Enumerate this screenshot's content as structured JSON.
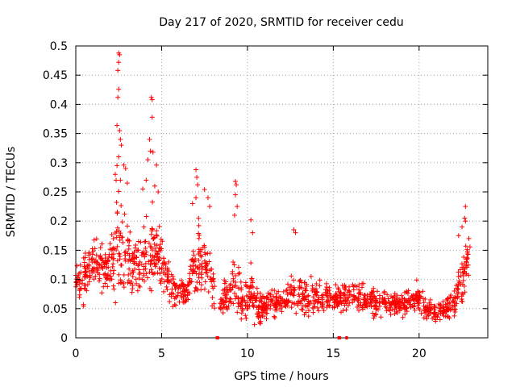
{
  "chart_data": {
    "type": "scatter",
    "title": "Day 217 of 2020, SRMTID for receiver cedu",
    "xlabel": "GPS time / hours",
    "ylabel": "SRMTID / TECUs",
    "xlim": [
      0,
      24
    ],
    "ylim": [
      0,
      0.5
    ],
    "x_ticks": [
      0,
      5,
      10,
      15,
      20
    ],
    "x_tick_labels": [
      "0",
      "5",
      "10",
      "15",
      "20"
    ],
    "y_ticks": [
      0,
      0.05,
      0.1,
      0.15,
      0.2,
      0.25,
      0.3,
      0.35,
      0.4,
      0.45,
      0.5
    ],
    "y_tick_labels": [
      "0",
      "0.05",
      "0.1",
      "0.15",
      "0.2",
      "0.25",
      "0.3",
      "0.35",
      "0.4",
      "0.45",
      "0.5"
    ],
    "grid": true,
    "marker": "+",
    "color": "#ff0000",
    "series": [
      {
        "name": "SRMTID",
        "envelope": {
          "x": [
            0.0,
            0.5,
            1.0,
            1.5,
            2.0,
            2.4,
            2.6,
            3.0,
            3.5,
            4.0,
            4.4,
            4.8,
            5.3,
            5.8,
            6.5,
            7.0,
            7.2,
            7.6,
            8.0,
            8.5,
            9.0,
            9.4,
            9.8,
            10.2,
            10.6,
            11.0,
            12.0,
            12.8,
            13.5,
            14.0,
            15.0,
            16.0,
            17.0,
            18.0,
            19.0,
            20.0,
            20.5,
            21.0,
            21.5,
            22.0,
            22.4,
            22.8,
            23.0
          ],
          "y_center": [
            0.1,
            0.1,
            0.13,
            0.12,
            0.12,
            0.15,
            0.15,
            0.14,
            0.12,
            0.13,
            0.16,
            0.14,
            0.1,
            0.08,
            0.08,
            0.12,
            0.14,
            0.12,
            0.09,
            0.06,
            0.08,
            0.09,
            0.06,
            0.08,
            0.05,
            0.055,
            0.06,
            0.075,
            0.07,
            0.07,
            0.065,
            0.075,
            0.065,
            0.06,
            0.06,
            0.065,
            0.05,
            0.045,
            0.05,
            0.06,
            0.09,
            0.13,
            0.12
          ],
          "y_spread": [
            0.03,
            0.04,
            0.04,
            0.04,
            0.05,
            0.1,
            0.1,
            0.07,
            0.05,
            0.06,
            0.08,
            0.06,
            0.04,
            0.03,
            0.03,
            0.06,
            0.06,
            0.05,
            0.04,
            0.03,
            0.04,
            0.06,
            0.03,
            0.05,
            0.03,
            0.025,
            0.025,
            0.04,
            0.035,
            0.03,
            0.025,
            0.025,
            0.025,
            0.025,
            0.025,
            0.03,
            0.02,
            0.02,
            0.02,
            0.025,
            0.04,
            0.05,
            0.04
          ]
        },
        "peaks": [
          {
            "x": 2.5,
            "y": 0.488
          },
          {
            "x": 2.55,
            "y": 0.485
          },
          {
            "x": 2.5,
            "y": 0.472
          },
          {
            "x": 2.45,
            "y": 0.458
          },
          {
            "x": 2.5,
            "y": 0.426
          },
          {
            "x": 2.45,
            "y": 0.412
          },
          {
            "x": 2.4,
            "y": 0.364
          },
          {
            "x": 2.55,
            "y": 0.355
          },
          {
            "x": 2.6,
            "y": 0.34
          },
          {
            "x": 2.65,
            "y": 0.33
          },
          {
            "x": 2.5,
            "y": 0.31
          },
          {
            "x": 2.4,
            "y": 0.295
          },
          {
            "x": 2.8,
            "y": 0.296
          },
          {
            "x": 2.9,
            "y": 0.29
          },
          {
            "x": 2.3,
            "y": 0.28
          },
          {
            "x": 2.35,
            "y": 0.27
          },
          {
            "x": 2.6,
            "y": 0.27
          },
          {
            "x": 3.0,
            "y": 0.265
          },
          {
            "x": 4.4,
            "y": 0.412
          },
          {
            "x": 4.45,
            "y": 0.408
          },
          {
            "x": 4.45,
            "y": 0.378
          },
          {
            "x": 4.3,
            "y": 0.34
          },
          {
            "x": 4.35,
            "y": 0.32
          },
          {
            "x": 4.5,
            "y": 0.318
          },
          {
            "x": 4.2,
            "y": 0.305
          },
          {
            "x": 4.7,
            "y": 0.296
          },
          {
            "x": 4.1,
            "y": 0.27
          },
          {
            "x": 3.9,
            "y": 0.255
          },
          {
            "x": 4.6,
            "y": 0.26
          },
          {
            "x": 4.8,
            "y": 0.25
          },
          {
            "x": 7.0,
            "y": 0.288
          },
          {
            "x": 7.05,
            "y": 0.275
          },
          {
            "x": 7.1,
            "y": 0.262
          },
          {
            "x": 7.0,
            "y": 0.24
          },
          {
            "x": 7.5,
            "y": 0.254
          },
          {
            "x": 7.7,
            "y": 0.24
          },
          {
            "x": 7.8,
            "y": 0.225
          },
          {
            "x": 6.8,
            "y": 0.23
          },
          {
            "x": 9.3,
            "y": 0.268
          },
          {
            "x": 9.35,
            "y": 0.262
          },
          {
            "x": 9.3,
            "y": 0.245
          },
          {
            "x": 9.4,
            "y": 0.225
          },
          {
            "x": 9.25,
            "y": 0.21
          },
          {
            "x": 10.2,
            "y": 0.202
          },
          {
            "x": 10.3,
            "y": 0.18
          },
          {
            "x": 12.7,
            "y": 0.185
          },
          {
            "x": 12.8,
            "y": 0.18
          },
          {
            "x": 22.7,
            "y": 0.225
          },
          {
            "x": 22.65,
            "y": 0.205
          },
          {
            "x": 22.7,
            "y": 0.2
          },
          {
            "x": 22.5,
            "y": 0.19
          },
          {
            "x": 22.9,
            "y": 0.17
          },
          {
            "x": 22.3,
            "y": 0.175
          }
        ],
        "seed": 217
      }
    ],
    "data_gaps": [
      {
        "x": [
          8.15,
          8.35
        ],
        "y": 0
      },
      {
        "x": [
          15.25,
          15.45
        ],
        "y": 0
      },
      {
        "x": [
          15.7,
          15.85
        ],
        "y": 0
      }
    ]
  }
}
